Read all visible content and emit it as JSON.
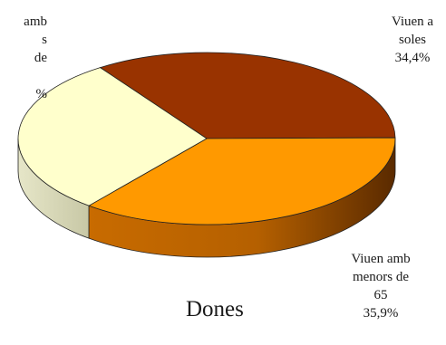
{
  "chart_data": {
    "type": "pie",
    "style": "3d",
    "title": "Dones",
    "slices": [
      {
        "label_lines": [
          "Viuen a",
          "soles",
          "34,4%"
        ],
        "value": 34.4,
        "color": "#993300"
      },
      {
        "label_lines": [
          "Viuen amb",
          "menors de",
          "65",
          "35,9%"
        ],
        "value": 35.9,
        "color": "#ff9900"
      },
      {
        "label_lines": [
          "amb",
          "s",
          "de",
          "%"
        ],
        "value": 29.7,
        "color": "#ffffcc"
      }
    ]
  }
}
